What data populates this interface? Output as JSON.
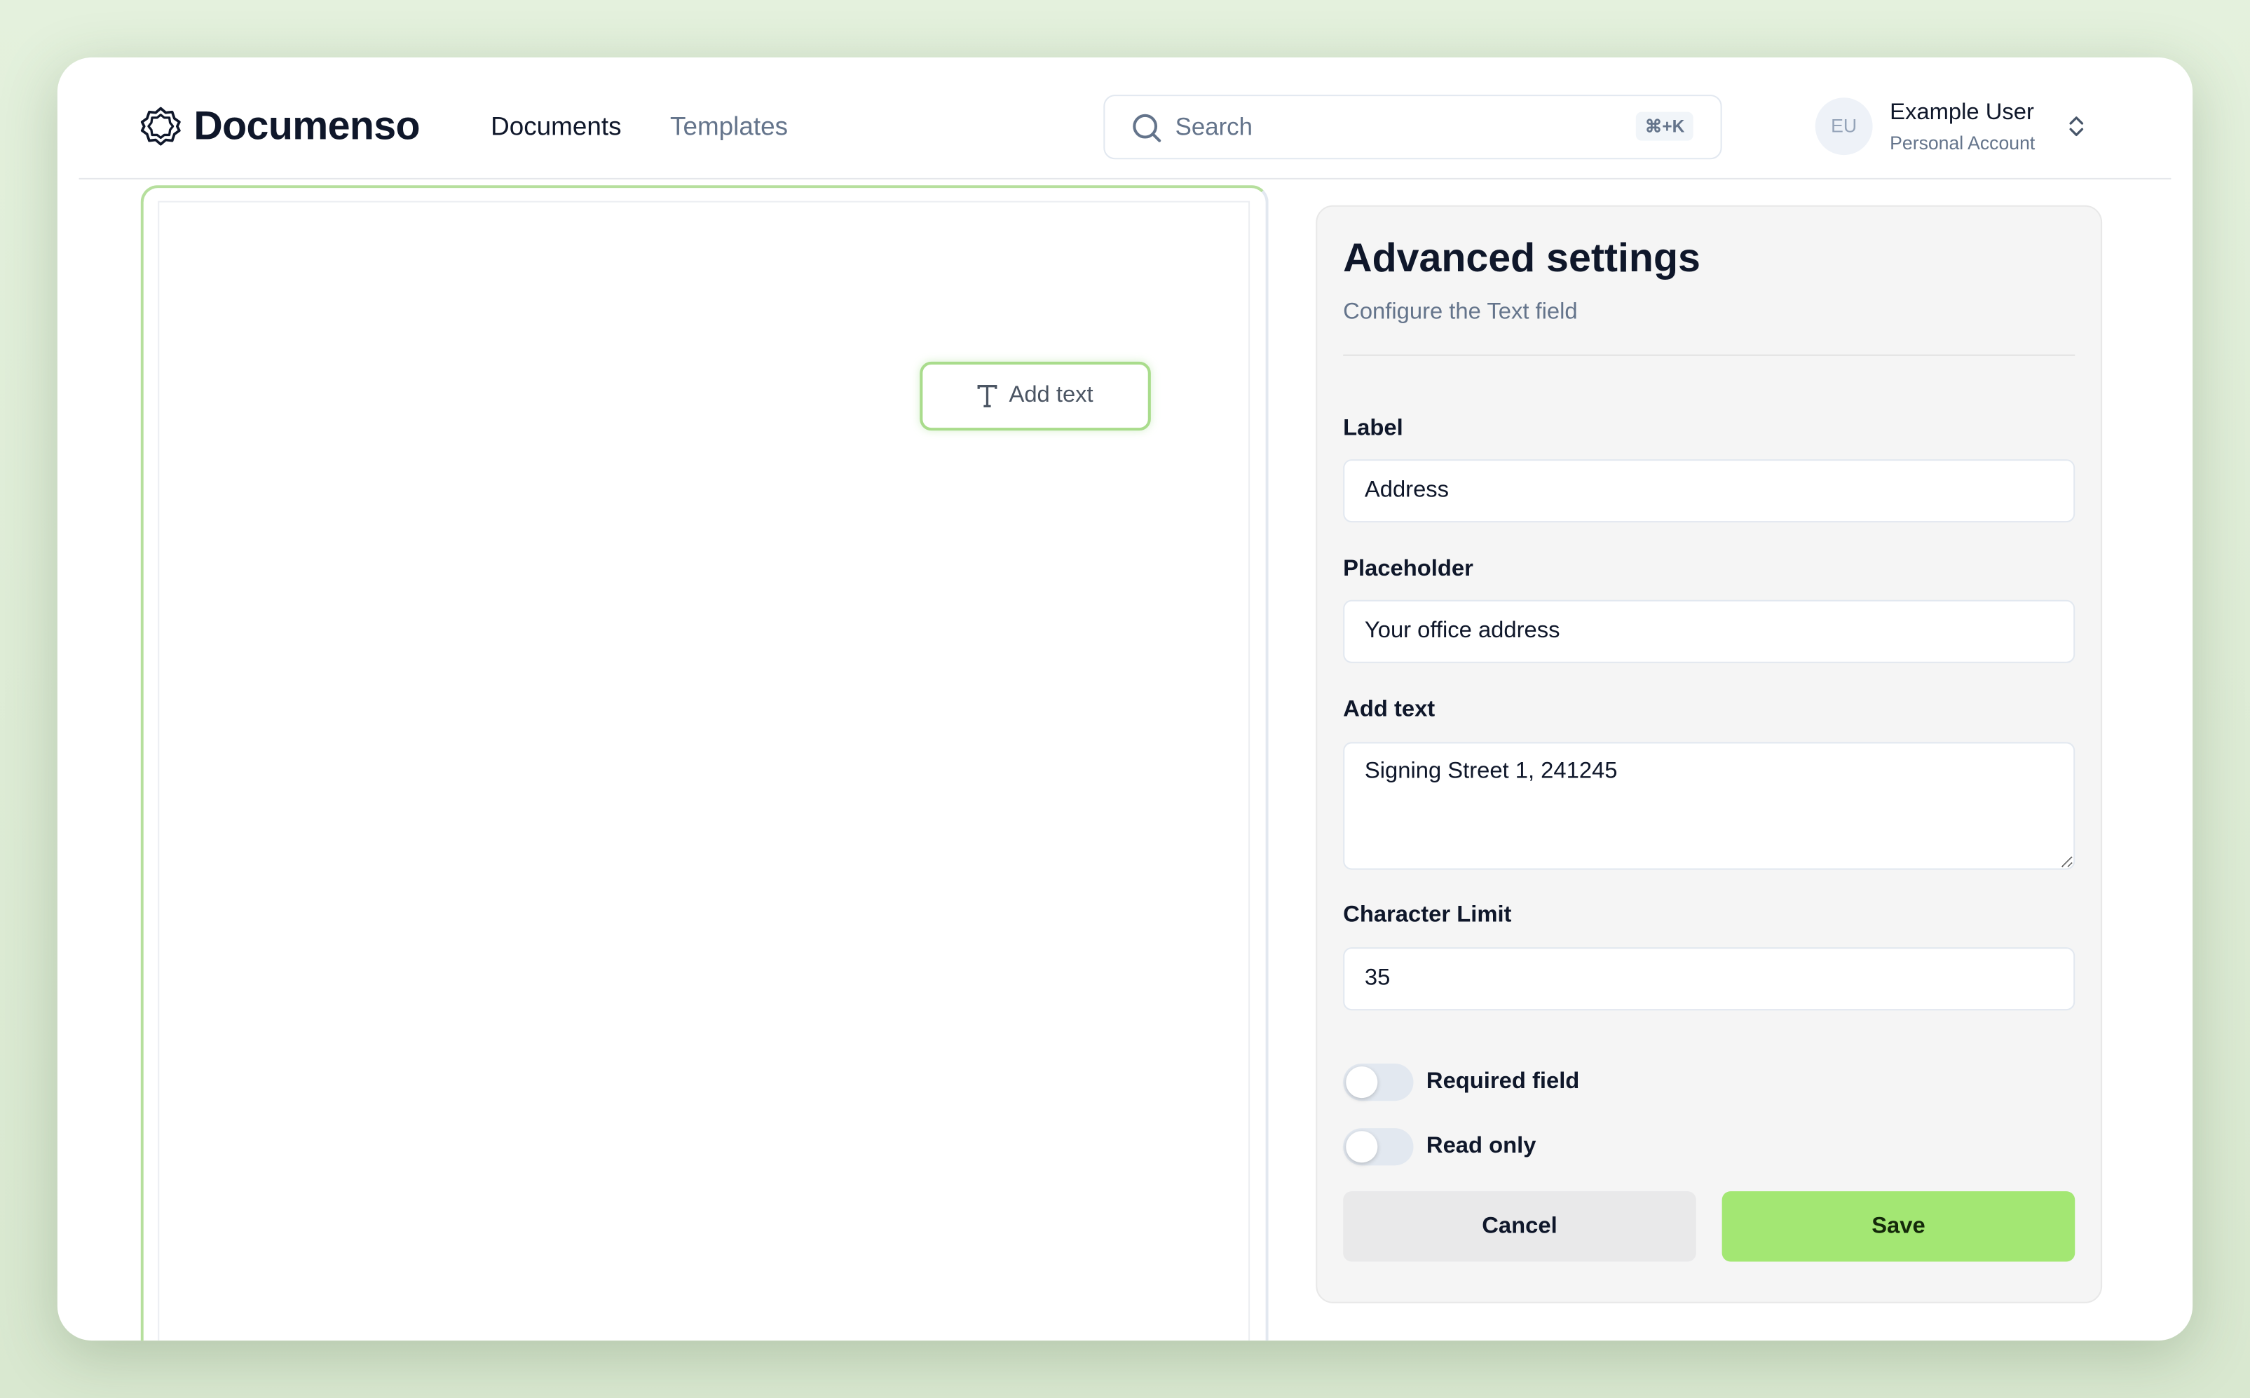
{
  "header": {
    "brand": "Documenso",
    "nav": [
      {
        "label": "Documents",
        "active": true
      },
      {
        "label": "Templates",
        "active": false
      }
    ],
    "search": {
      "placeholder": "Search",
      "shortcut": "⌘+K"
    },
    "user": {
      "initials": "EU",
      "name": "Example User",
      "account": "Personal Account"
    }
  },
  "document": {
    "field_label": "Add text",
    "field_icon": "text-type-icon"
  },
  "panel": {
    "title": "Advanced settings",
    "subtitle": "Configure the Text field",
    "label_label": "Label",
    "label_value": "Address",
    "placeholder_label": "Placeholder",
    "placeholder_value": "Your office address",
    "text_label": "Add text",
    "text_value": "Signing Street 1, 241245",
    "limit_label": "Character Limit",
    "limit_value": "35",
    "required_label": "Required field",
    "required_on": false,
    "readonly_label": "Read only",
    "readonly_on": false,
    "cancel": "Cancel",
    "save": "Save"
  },
  "colors": {
    "accent": "#a3e773",
    "brand_text": "#0f172a",
    "muted": "#64748b"
  }
}
